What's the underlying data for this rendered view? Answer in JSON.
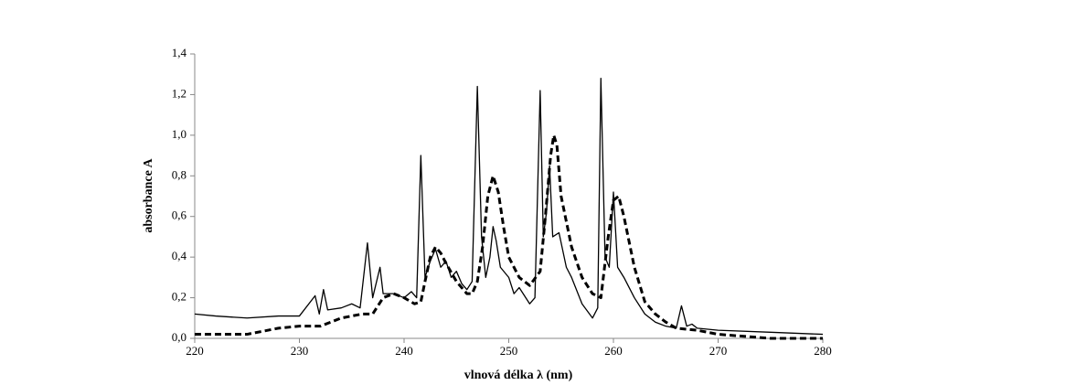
{
  "chart_data": {
    "type": "line",
    "x_label": "vlnová délka λ (nm)",
    "y_label": "absorbance A",
    "xlim": [
      220,
      280
    ],
    "xticks": [
      220,
      230,
      240,
      250,
      260,
      270,
      280
    ],
    "ylim": [
      0,
      1.4
    ],
    "yticks": [
      {
        "value": 0,
        "label": "0,0"
      },
      {
        "value": 0.2,
        "label": "0,2"
      },
      {
        "value": 0.4,
        "label": "0,4"
      },
      {
        "value": 0.6,
        "label": "0,6"
      },
      {
        "value": 0.8,
        "label": "0,8"
      },
      {
        "value": 1.0,
        "label": "1,0"
      },
      {
        "value": 1.2,
        "label": "1,2"
      },
      {
        "value": 1.4,
        "label": "1,4"
      }
    ],
    "series": [
      {
        "color": "#000000",
        "dash": "solid",
        "x": [
          220,
          222,
          225,
          228,
          230,
          231.5,
          231.9,
          232.3,
          232.7,
          234,
          235,
          235.8,
          236.5,
          237,
          237.7,
          238,
          239,
          240,
          240.7,
          241.2,
          241.6,
          242,
          242.5,
          243,
          243.5,
          244,
          244.5,
          245,
          245.5,
          246,
          246.5,
          247,
          247.4,
          247.8,
          248.2,
          248.5,
          248.8,
          249.2,
          250,
          250.5,
          251,
          252,
          252.5,
          253,
          253.3,
          253.6,
          253.9,
          254.2,
          254.8,
          255.5,
          256,
          257,
          258,
          258.5,
          258.8,
          259.2,
          259.6,
          260,
          260.4,
          261,
          262,
          263,
          264,
          265,
          266,
          266.5,
          267,
          267.5,
          268,
          270,
          275,
          280
        ],
        "values": [
          0.12,
          0.11,
          0.1,
          0.11,
          0.11,
          0.21,
          0.12,
          0.24,
          0.14,
          0.15,
          0.17,
          0.15,
          0.47,
          0.2,
          0.35,
          0.22,
          0.22,
          0.2,
          0.23,
          0.2,
          0.9,
          0.3,
          0.38,
          0.44,
          0.35,
          0.38,
          0.3,
          0.33,
          0.27,
          0.24,
          0.28,
          1.24,
          0.5,
          0.3,
          0.4,
          0.55,
          0.48,
          0.35,
          0.3,
          0.22,
          0.25,
          0.17,
          0.2,
          1.22,
          0.5,
          0.62,
          0.85,
          0.5,
          0.52,
          0.35,
          0.3,
          0.17,
          0.1,
          0.15,
          1.28,
          0.4,
          0.35,
          0.72,
          0.35,
          0.3,
          0.2,
          0.12,
          0.08,
          0.06,
          0.05,
          0.16,
          0.06,
          0.07,
          0.05,
          0.04,
          0.03,
          0.02
        ]
      },
      {
        "color": "#000000",
        "dash": "dashed",
        "x": [
          220,
          225,
          228,
          230,
          232,
          234,
          236,
          237,
          238,
          239,
          240,
          241,
          241.6,
          242,
          242.5,
          243,
          243.5,
          244,
          245,
          246,
          246.5,
          247,
          247.5,
          248,
          248.5,
          249,
          249.5,
          250,
          251,
          252,
          253,
          253.5,
          254,
          254.3,
          254.6,
          255,
          256,
          257,
          258,
          258.8,
          259.5,
          260,
          260.5,
          261,
          262,
          263,
          264,
          265,
          266,
          268,
          270,
          275,
          280
        ],
        "values": [
          0.02,
          0.02,
          0.05,
          0.06,
          0.06,
          0.1,
          0.12,
          0.12,
          0.2,
          0.22,
          0.2,
          0.17,
          0.18,
          0.28,
          0.4,
          0.45,
          0.42,
          0.37,
          0.28,
          0.22,
          0.22,
          0.28,
          0.45,
          0.7,
          0.8,
          0.72,
          0.55,
          0.4,
          0.3,
          0.26,
          0.33,
          0.6,
          0.9,
          1.0,
          0.95,
          0.7,
          0.45,
          0.3,
          0.22,
          0.2,
          0.5,
          0.68,
          0.7,
          0.6,
          0.35,
          0.18,
          0.12,
          0.08,
          0.05,
          0.04,
          0.02,
          0,
          0
        ]
      }
    ]
  }
}
